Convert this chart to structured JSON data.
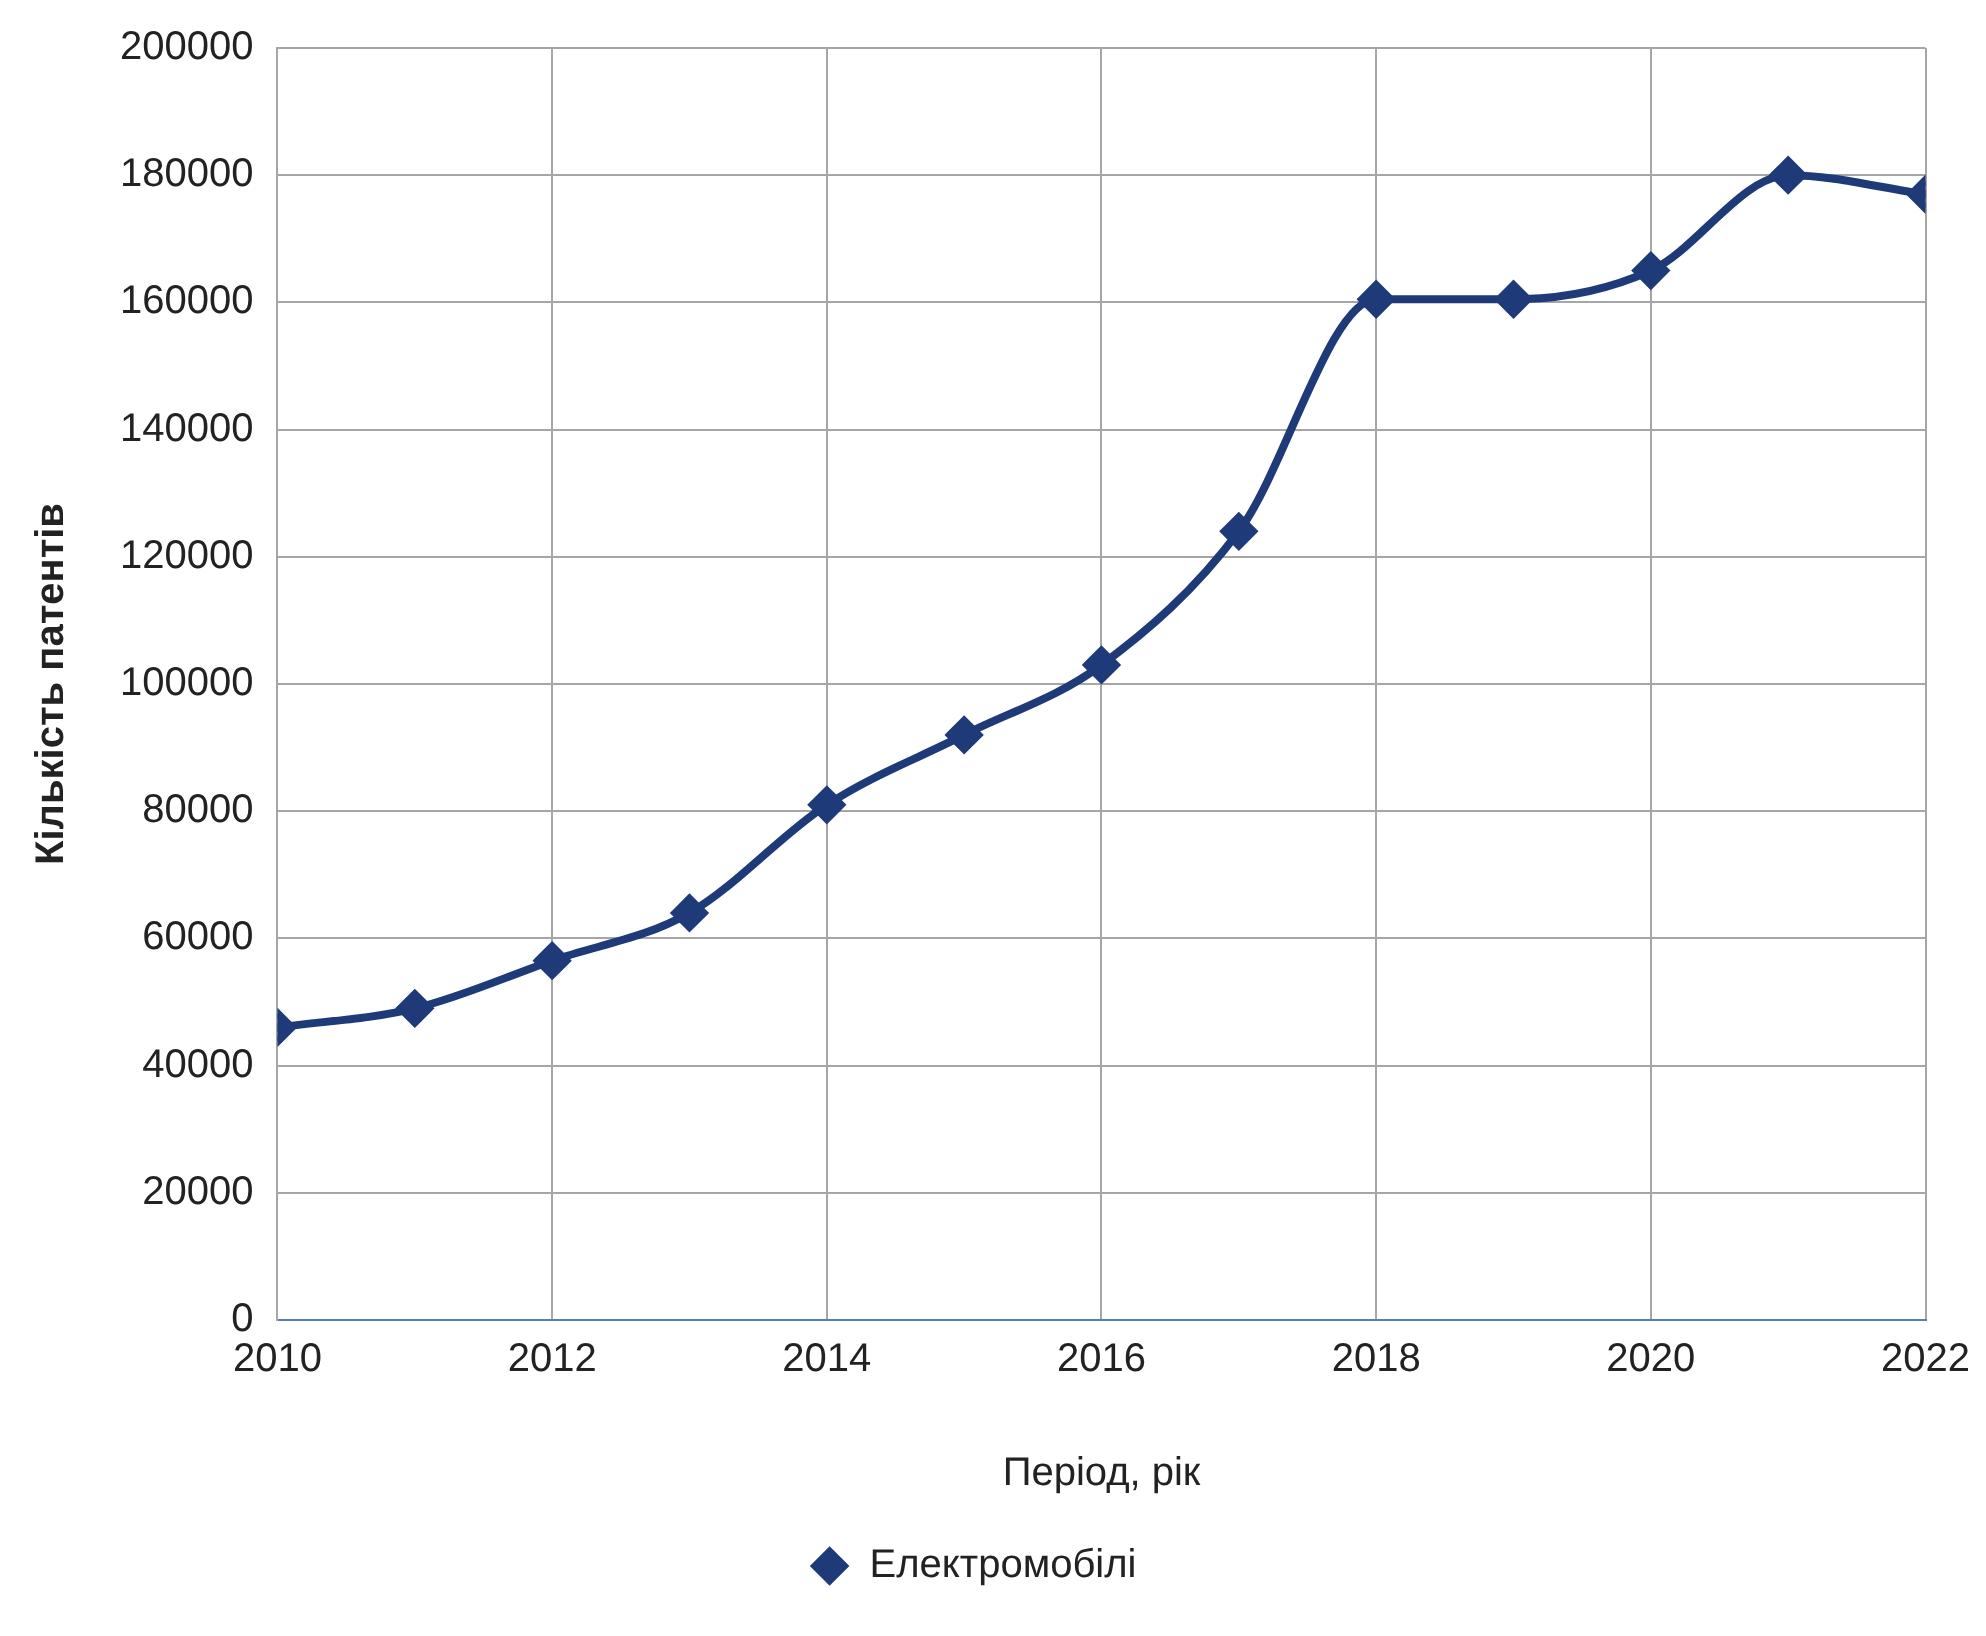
{
  "chart_data": {
    "type": "line",
    "xlabel": "Період, рік",
    "ylabel": "Кількість патентів",
    "x": [
      2010,
      2011,
      2012,
      2013,
      2014,
      2015,
      2016,
      2017,
      2018,
      2019,
      2020,
      2021,
      2022
    ],
    "series": [
      {
        "name": "Електромобілі",
        "color": "#1f3a78",
        "values": [
          46000,
          49000,
          56500,
          64000,
          81000,
          92000,
          103000,
          124000,
          160500,
          160500,
          165000,
          180000,
          177000
        ]
      }
    ],
    "xlim": [
      2010,
      2022
    ],
    "xticks": [
      2010,
      2012,
      2014,
      2016,
      2018,
      2020,
      2022
    ],
    "ylim": [
      0,
      200000
    ],
    "yticks": [
      0,
      20000,
      40000,
      60000,
      80000,
      100000,
      120000,
      140000,
      160000,
      180000,
      200000
    ],
    "grid": true,
    "legend": "bottom",
    "marker": "diamond",
    "line_style": "solid"
  }
}
